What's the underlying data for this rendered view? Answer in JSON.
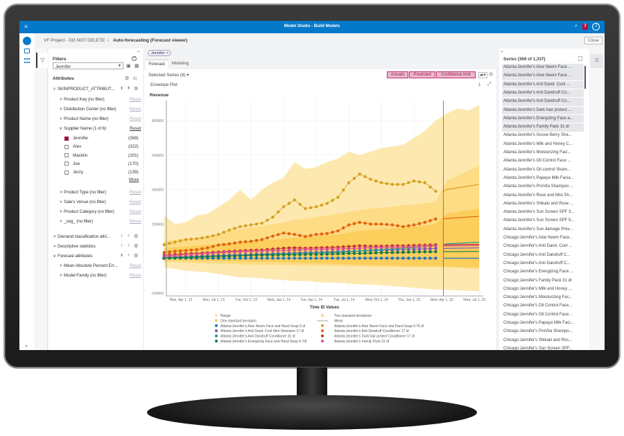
{
  "app": {
    "title": "Model Studio - Build Models",
    "notification_count": "7",
    "close_label": "Close"
  },
  "breadcrumb": {
    "project": "VF Project - DO NOT DELETE",
    "separator": ">",
    "current": "Auto-forecasting (Forecast viewer)"
  },
  "filters": {
    "title": "Filters",
    "search_value": "Jennifer",
    "attributes_title": "Attributes",
    "group": "SKINPRODUCT_ATTRIBUT...",
    "items": [
      {
        "label": "Product Key (no filter)",
        "reset": "Reset"
      },
      {
        "label": "Distribution Center (no filter)",
        "reset": "Reset"
      },
      {
        "label": "Product Name (no filter)",
        "reset": "Reset"
      }
    ],
    "supplier": {
      "label": "Supplier Name (1 of 6)",
      "reset": "Reset",
      "more": "More",
      "options": [
        {
          "name": "Jennifer",
          "count": "(369)",
          "checked": true
        },
        {
          "name": "Alex",
          "count": "(322)",
          "checked": false
        },
        {
          "name": "Macklin",
          "count": "(201)",
          "checked": false
        },
        {
          "name": "Joe",
          "count": "(170)",
          "checked": false
        },
        {
          "name": "Jerzy",
          "count": "(139)",
          "checked": false
        }
      ]
    },
    "items2": [
      {
        "label": "Product Type (no filter)",
        "reset": "Reset"
      },
      {
        "label": "Sale's Venue (no filter)",
        "reset": "Reset"
      },
      {
        "label": "Product Category (no filter)",
        "reset": "Reset"
      },
      {
        "label": "_seg_ (no filter)",
        "reset": "Reset"
      }
    ],
    "groups": [
      "Demand classification attri...",
      "Descriptive statistics",
      "Forecast attributes"
    ],
    "forecast_items": [
      {
        "label": "Mean Absolute Percent Err...",
        "reset": "Reset"
      },
      {
        "label": "Model Family (no filter)",
        "reset": "Reset"
      }
    ]
  },
  "main": {
    "chip": "Jennifer",
    "chip_close": "×",
    "tabs": [
      "Forecast",
      "Modeling"
    ],
    "selected_series": "Selected Series (8) ▾",
    "plot_type": "Envelope Plot",
    "toggles": [
      "Actuals",
      "Predicted",
      "Confidence limit"
    ]
  },
  "series_panel": {
    "title": "Series (369 of 1,337)",
    "expand": "»",
    "selected_count": 8,
    "items": [
      "Atlanta:Jennifer's Aloe Neem Face ...",
      "Atlanta:Jennifer's Aloe Neem Face ...",
      "Atlanta:Jennifer's Anti Dand. Cool ...",
      "Atlanta:Jennifer's Anti Dandruff Co...",
      "Atlanta:Jennifer's Anti Dandruff Co...",
      "Atlanta:Jennifer's Dark hair protect ...",
      "Atlanta:Jennifer's Energizing Face a...",
      "Atlanta:Jennifer's Family Pack 31 dl",
      "Atlanta:Jennifer's Goose Berry Sha...",
      "Atlanta:Jennifer's Milk and Honey C...",
      "Atlanta:Jennifer's Moisturizing Faci...",
      "Atlanta:Jennifer's Oil Control Face ...",
      "Atlanta:Jennifer's Oil control Sham...",
      "Atlanta:Jennifer's Papaya Milk Facia...",
      "Atlanta:Jennifer's ProVita Shampoo ...",
      "Atlanta:Jennifer's Rose and Mist Sh...",
      "Atlanta:Jennifer's Shikaki and Rose ...",
      "Atlanta:Jennifer's Sun Screen SPF 3...",
      "Atlanta:Jennifer's Sun Screen SPF 5...",
      "Atlanta:Jennifer's Sun damage Prev...",
      "Chicago:Jennifer's Aloe Neem Face...",
      "Chicago:Jennifer's Anti Dand. Cool ...",
      "Chicago:Jennifer's Anti Dandruff C...",
      "Chicago:Jennifer's Anti Dandruff C...",
      "Chicago:Jennifer's Energizing Face ...",
      "Chicago:Jennifer's Family Pack 31 dl",
      "Chicago:Jennifer's Milk and Honey ...",
      "Chicago:Jennifer's Moisturizing Fac...",
      "Chicago:Jennifer's Oil Control Face...",
      "Chicago:Jennifer's Oil Control Face...",
      "Chicago:Jennifer's Papaya Milk Faci...",
      "Chicago:Jennifer's ProVita Shampo...",
      "Chicago:Jennifer's Shikaki and Ros...",
      "Chicago:Jennifer's Sun Screen SPF..."
    ]
  },
  "chart_data": {
    "type": "line",
    "title": "Revenue",
    "xlabel": "Time ID Values",
    "ylabel": "Revenue",
    "ylim": [
      -200000,
      900000
    ],
    "yticks": [
      800000,
      600000,
      400000,
      200000,
      0,
      -200000
    ],
    "x_unit": "month index from Jan 2013",
    "xticks": [
      {
        "m": 3,
        "label": "Mon, Apr 1, 13"
      },
      {
        "m": 6,
        "label": "Mon, Jul 1, 13"
      },
      {
        "m": 9,
        "label": "Tue, Oct 1, 13"
      },
      {
        "m": 12,
        "label": "Wed, Jan 1, 14"
      },
      {
        "m": 15,
        "label": "Tue, Apr 1, 14"
      },
      {
        "m": 18,
        "label": "Tue, Jul 1, 14"
      },
      {
        "m": 21,
        "label": "Wed, Oct 1, 14"
      },
      {
        "m": 24,
        "label": "Thu, Jan 1, 15"
      },
      {
        "m": 27,
        "label": "Wed, Apr 1, 15"
      },
      {
        "m": 30,
        "label": "Wed, Jul 1, 15"
      }
    ],
    "actual_start_month": 1,
    "forecast_start_month": 26.7,
    "units": "thousands",
    "bands": [
      {
        "name": "Range",
        "color": "#fde9b0",
        "upper": [
          250,
          200,
          210,
          250,
          260,
          300,
          340,
          400,
          340,
          400,
          440,
          470,
          560,
          520,
          530,
          560,
          580,
          620,
          600,
          620,
          640,
          650,
          660,
          700,
          740,
          800,
          840,
          870,
          860,
          890
        ],
        "lower": [
          -50,
          -60,
          -70,
          -75,
          -80,
          -90,
          -100,
          -110,
          -110,
          -115,
          -120,
          -125,
          -130,
          -130,
          -135,
          -140,
          -140,
          -145,
          -150,
          -150,
          -155,
          -160,
          -165,
          -170,
          -175,
          -180,
          -182,
          -185,
          -188,
          -190
        ]
      },
      {
        "name": "Two standard deviations",
        "color": "#fddc85",
        "upper": [
          100,
          110,
          115,
          120,
          130,
          140,
          160,
          170,
          180,
          190,
          200,
          210,
          225,
          230,
          240,
          250,
          260,
          270,
          280,
          290,
          295,
          300,
          310,
          315,
          320,
          330,
          450,
          480,
          510,
          540
        ],
        "lower": [
          -20,
          -22,
          -24,
          -26,
          -28,
          -30,
          -32,
          -34,
          -35,
          -36,
          -37,
          -38,
          -39,
          -40,
          -41,
          -42,
          -43,
          -44,
          -45,
          -46,
          -47,
          -48,
          -49,
          -49,
          -50,
          -50,
          -50,
          -55,
          -58,
          -60
        ]
      },
      {
        "name": "One standard deviation",
        "color": "#fcce5c",
        "upper": [
          60,
          65,
          70,
          75,
          80,
          85,
          90,
          95,
          100,
          105,
          110,
          115,
          120,
          125,
          130,
          135,
          140,
          150,
          160,
          165,
          170,
          175,
          180,
          185,
          190,
          200,
          260,
          270,
          280,
          290
        ],
        "lower": [
          -10,
          -11,
          -12,
          -13,
          -14,
          -15,
          -16,
          -17,
          -18,
          -19,
          -20,
          -22,
          -24,
          -26,
          -28,
          -30,
          -32,
          -34,
          -36,
          -38,
          -40,
          -42,
          -43,
          -44,
          -45,
          -45,
          -45,
          -48,
          -50,
          -52
        ]
      }
    ],
    "mean_label": "Mean",
    "series": [
      {
        "name": "Atlanta:Jennifer's Aloe Neem Face and Hand Soap 5 dl",
        "color": "#1a73c8",
        "values": [
          2,
          2,
          2,
          2,
          2,
          2,
          2,
          2,
          2,
          2,
          2,
          2,
          2,
          2,
          2,
          2,
          2,
          2,
          2,
          2,
          2,
          2,
          2,
          2,
          2,
          2
        ],
        "forecast": [
          2,
          2,
          2,
          2
        ]
      },
      {
        "name": "Atlanta:Jennifer's Anti Dand. Cool Mint Shampoo 17 dl",
        "color": "#7b4fc9",
        "values": [
          8,
          10,
          12,
          14,
          16,
          18,
          20,
          22,
          24,
          26,
          28,
          30,
          32,
          34,
          36,
          38,
          40,
          42,
          44,
          46,
          48,
          50,
          52,
          54,
          56,
          58
        ],
        "forecast": [
          59,
          60,
          61,
          62
        ]
      },
      {
        "name": "Atlanta:Jennifer's Anti Dandruff Conditioner 31 dl",
        "color": "#1a9a9a",
        "values": [
          5,
          6,
          8,
          10,
          12,
          14,
          16,
          18,
          20,
          22,
          24,
          26,
          28,
          30,
          32,
          34,
          36,
          40,
          44,
          48,
          52,
          56,
          60,
          64,
          70,
          80
        ],
        "forecast": [
          85,
          88,
          92,
          95
        ]
      },
      {
        "name": "Atlanta:Jennifer's Energizing Face and Hand Soap 6.7dl",
        "color": "#0c7a4a",
        "values": [
          2,
          4,
          6,
          8,
          10,
          12,
          14,
          16,
          18,
          20,
          20,
          22,
          22,
          24,
          24,
          26,
          28,
          30,
          30,
          32,
          34,
          35,
          36,
          38,
          39,
          40
        ],
        "forecast": [
          40,
          40,
          41,
          41
        ]
      },
      {
        "name": "Atlanta:Jennifer's Aloe Neem Face and Hand Soap 6.76 dl",
        "color": "#d4a020",
        "values": [
          80,
          95,
          110,
          115,
          125,
          140,
          165,
          185,
          195,
          205,
          240,
          300,
          340,
          290,
          300,
          320,
          355,
          440,
          490,
          460,
          440,
          430,
          430,
          450,
          440,
          390
        ],
        "forecast": [
          400,
          410,
          420,
          430
        ]
      },
      {
        "name": "Atlanta:Jennifer's Anti Dandruff Conditioner 17 dl",
        "color": "#e0600a",
        "values": [
          35,
          42,
          47,
          52,
          62,
          78,
          85,
          95,
          100,
          110,
          130,
          148,
          140,
          128,
          140,
          145,
          160,
          195,
          210,
          200,
          200,
          195,
          185,
          195,
          210,
          230
        ],
        "forecast": [
          232,
          237,
          241,
          245
        ]
      },
      {
        "name": "Atlanta:Jennifer's Dark hair protect Conditioner 17 dl",
        "color": "#c03030",
        "values": [
          20,
          24,
          28,
          30,
          34,
          38,
          42,
          45,
          48,
          50,
          55,
          60,
          62,
          60,
          62,
          64,
          66,
          70,
          74,
          72,
          72,
          74,
          74,
          76,
          78,
          80
        ],
        "forecast": [
          80,
          81,
          82,
          82
        ]
      },
      {
        "name": "Atlanta:Jennifer's Family Pack 31 dl",
        "color": "#d64a9a",
        "values": [
          15,
          18,
          22,
          26,
          30,
          34,
          38,
          40,
          42,
          44,
          46,
          48,
          50,
          52,
          54,
          55,
          56,
          58,
          60,
          62,
          64,
          65,
          66,
          68,
          70,
          72
        ],
        "forecast": [
          73,
          74,
          75,
          76
        ]
      }
    ]
  }
}
